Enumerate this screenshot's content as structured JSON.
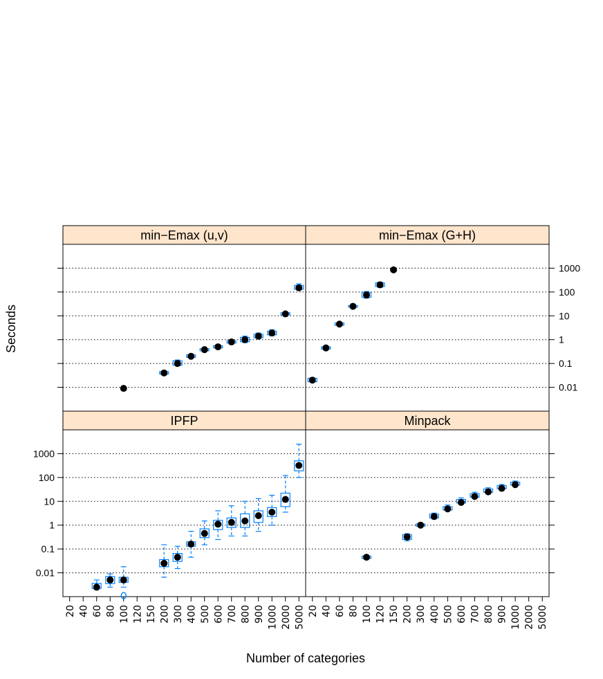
{
  "chart_data": {
    "type": "box",
    "xlabel": "Number of categories",
    "ylabel": "Seconds",
    "y_scale": "log10",
    "ylim": [
      0.001,
      10000
    ],
    "y_ticks": [
      "0.01",
      "0.1",
      "1",
      "10",
      "100",
      "1000"
    ],
    "x_ticks": [
      "20",
      "40",
      "60",
      "80",
      "100",
      "120",
      "150",
      "200",
      "300",
      "400",
      "500",
      "600",
      "700",
      "800",
      "900",
      "1000",
      "2000",
      "5000"
    ],
    "grid": true,
    "colors": {
      "strip": "#ffe5cc",
      "box": "#0080ff",
      "median_dot": "#000000"
    },
    "panels": [
      {
        "title": "min−Emax (u,v)",
        "stats": [
          {
            "x": "100",
            "med": 0.009
          },
          {
            "x": "200",
            "med": 0.04,
            "q1": 0.036,
            "q3": 0.046
          },
          {
            "x": "300",
            "med": 0.1,
            "q1": 0.085,
            "q3": 0.13,
            "lo": 0.08,
            "hi": 0.14
          },
          {
            "x": "400",
            "med": 0.2,
            "q1": 0.18,
            "q3": 0.23
          },
          {
            "x": "500",
            "med": 0.38,
            "q1": 0.34,
            "q3": 0.42
          },
          {
            "x": "600",
            "med": 0.5,
            "q1": 0.45,
            "q3": 0.56
          },
          {
            "x": "700",
            "med": 0.8,
            "q1": 0.72,
            "q3": 0.9
          },
          {
            "x": "800",
            "med": 1.0,
            "q1": 0.82,
            "q3": 1.25,
            "lo": 0.75,
            "hi": 1.4
          },
          {
            "x": "900",
            "med": 1.4,
            "q1": 1.2,
            "q3": 1.7,
            "lo": 1.1,
            "hi": 1.9
          },
          {
            "x": "1000",
            "med": 1.9,
            "q1": 1.6,
            "q3": 2.3,
            "lo": 1.45,
            "hi": 2.6
          },
          {
            "x": "2000",
            "med": 12,
            "q1": 11,
            "q3": 13.5
          },
          {
            "x": "5000",
            "med": 150,
            "q1": 130,
            "q3": 190,
            "lo": 120,
            "hi": 220
          }
        ]
      },
      {
        "title": "min−Emax (G+H)",
        "stats": [
          {
            "x": "20",
            "med": 0.02,
            "q1": 0.017,
            "q3": 0.024
          },
          {
            "x": "40",
            "med": 0.45,
            "q1": 0.4,
            "q3": 0.5
          },
          {
            "x": "60",
            "med": 4.5,
            "q1": 4.0,
            "q3": 5.0
          },
          {
            "x": "80",
            "med": 25,
            "q1": 23,
            "q3": 27
          },
          {
            "x": "100",
            "med": 75,
            "q1": 60,
            "q3": 95,
            "lo": 55,
            "hi": 105
          },
          {
            "x": "120",
            "med": 200,
            "q1": 170,
            "q3": 240,
            "lo": 155,
            "hi": 260
          },
          {
            "x": "150",
            "med": 850
          }
        ]
      },
      {
        "title": "IPFP",
        "stats": [
          {
            "x": "60",
            "med": 0.0025,
            "q1": 0.0022,
            "q3": 0.0036,
            "lo": 0.002,
            "hi": 0.005
          },
          {
            "x": "80",
            "med": 0.005,
            "q1": 0.0035,
            "q3": 0.007,
            "lo": 0.0025,
            "hi": 0.009
          },
          {
            "x": "100",
            "med": 0.005,
            "q1": 0.004,
            "q3": 0.0065,
            "lo": 0.0025,
            "hi": 0.018,
            "out": [
              0.0011
            ]
          },
          {
            "x": "200",
            "med": 0.025,
            "q1": 0.018,
            "q3": 0.036,
            "lo": 0.0065,
            "hi": 0.15
          },
          {
            "x": "300",
            "med": 0.045,
            "q1": 0.03,
            "q3": 0.065,
            "lo": 0.015,
            "hi": 0.13
          },
          {
            "x": "400",
            "med": 0.16,
            "q1": 0.13,
            "q3": 0.2,
            "lo": 0.045,
            "hi": 0.55
          },
          {
            "x": "500",
            "med": 0.45,
            "q1": 0.3,
            "q3": 0.7,
            "lo": 0.15,
            "hi": 1.5
          },
          {
            "x": "600",
            "med": 1.1,
            "q1": 0.65,
            "q3": 1.6,
            "lo": 0.25,
            "hi": 4.0
          },
          {
            "x": "700",
            "med": 1.3,
            "q1": 0.8,
            "q3": 2.0,
            "lo": 0.35,
            "hi": 6.5
          },
          {
            "x": "800",
            "med": 1.5,
            "q1": 0.8,
            "q3": 3.0,
            "lo": 0.35,
            "hi": 10
          },
          {
            "x": "900",
            "med": 2.5,
            "q1": 1.3,
            "q3": 4.0,
            "lo": 0.55,
            "hi": 13
          },
          {
            "x": "1000",
            "med": 3.5,
            "q1": 2.3,
            "q3": 5.5,
            "lo": 1.0,
            "hi": 18
          },
          {
            "x": "2000",
            "med": 12,
            "q1": 6.0,
            "q3": 22,
            "lo": 3.5,
            "hi": 120
          },
          {
            "x": "5000",
            "med": 320,
            "q1": 190,
            "q3": 500,
            "lo": 100,
            "hi": 2500
          }
        ]
      },
      {
        "title": "Minpack",
        "stats": [
          {
            "x": "100",
            "med": 0.045,
            "q1": 0.04,
            "q3": 0.05
          },
          {
            "x": "200",
            "med": 0.32,
            "q1": 0.25,
            "q3": 0.4,
            "lo": 0.22,
            "hi": 0.44
          },
          {
            "x": "300",
            "med": 1.0,
            "q1": 0.9,
            "q3": 1.12
          },
          {
            "x": "400",
            "med": 2.3,
            "q1": 2.0,
            "q3": 2.9,
            "lo": 1.8,
            "hi": 3.2
          },
          {
            "x": "500",
            "med": 4.8,
            "q1": 4.3,
            "q3": 6.0,
            "lo": 4.0,
            "hi": 7.0
          },
          {
            "x": "600",
            "med": 9.0,
            "q1": 8.5,
            "q3": 12,
            "lo": 8.0,
            "hi": 14
          },
          {
            "x": "700",
            "med": 16,
            "q1": 15,
            "q3": 21,
            "lo": 14,
            "hi": 24
          },
          {
            "x": "800",
            "med": 25,
            "q1": 24,
            "q3": 33,
            "lo": 23,
            "hi": 37
          },
          {
            "x": "900",
            "med": 35,
            "q1": 34,
            "q3": 46,
            "lo": 32,
            "hi": 51
          },
          {
            "x": "1000",
            "med": 50,
            "q1": 48,
            "q3": 64,
            "lo": 45,
            "hi": 71
          }
        ]
      }
    ]
  }
}
